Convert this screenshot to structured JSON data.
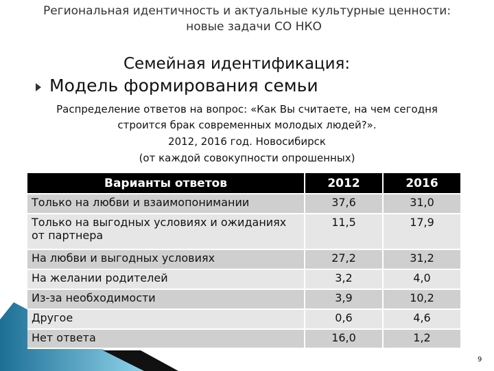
{
  "header": {
    "line1": "Региональная идентичность и актуальные культурные ценности:",
    "line2": "новые задачи СО НКО"
  },
  "subtitle": "Семейная идентификация:",
  "bullet": "Модель формирования семьи",
  "caption": [
    "Распределение ответов на вопрос: «Как Вы считаете, на чем сегодня",
    "строится брак современных молодых людей?».",
    "2012, 2016 год. Новосибирск",
    "(от каждой совокупности опрошенных)"
  ],
  "table": {
    "headers": [
      "Варианты ответов",
      "2012",
      "2016"
    ],
    "rows": [
      [
        "Только на любви и взаимопонимании",
        "37,6",
        "31,0"
      ],
      [
        "Только на выгодных условиях и ожиданиях от партнера",
        "11,5",
        "17,9"
      ],
      [
        "На любви и выгодных условиях",
        "27,2",
        "31,2"
      ],
      [
        "На желании родителей",
        "3,2",
        "4,0"
      ],
      [
        "Из-за необходимости",
        "3,9",
        "10,2"
      ],
      [
        "Другое",
        "0,6",
        "4,6"
      ],
      [
        "Нет ответа",
        "16,0",
        "1,2"
      ]
    ]
  },
  "page_number": "9",
  "colors": {
    "header_bg": "#000000",
    "row_dark": "#cfcfcf",
    "row_light": "#e6e6e6",
    "accent": "#2a8fb5"
  }
}
